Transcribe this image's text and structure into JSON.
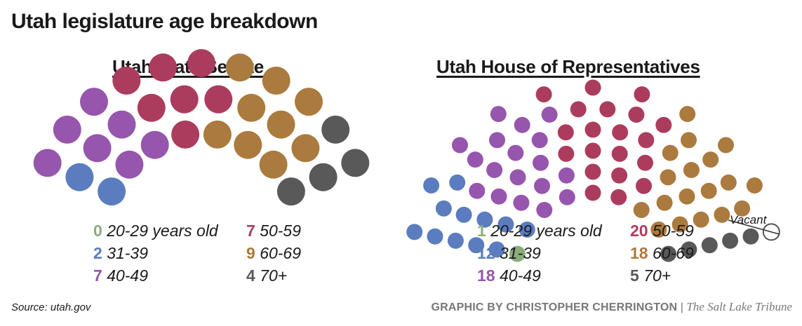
{
  "title": "Utah legislature age breakdown",
  "source": "Source: utah.gov",
  "credit": {
    "byline": "GRAPHIC BY CHRISTOPHER CHERRINGTON",
    "separator": "|",
    "publication": "The Salt Lake Tribune"
  },
  "colors": {
    "20-29": "#8aac7c",
    "31-39": "#5b7cbf",
    "40-49": "#9656ad",
    "50-59": "#ac3c5d",
    "60-69": "#ab7a3e",
    "70+": "#595959",
    "vacant": "#ffffff"
  },
  "chart_data": [
    {
      "type": "parliament",
      "title": "Utah State Senate",
      "categories": [
        "20-29 years old",
        "31-39",
        "40-49",
        "50-59",
        "60-69",
        "70+"
      ],
      "values": [
        0,
        2,
        7,
        7,
        9,
        4
      ],
      "legend": [
        {
          "count": "0",
          "label": "20-29 years old"
        },
        {
          "count": "7",
          "label": "50-59"
        },
        {
          "count": "2",
          "label": "31-39"
        },
        {
          "count": "9",
          "label": "60-69"
        },
        {
          "count": "7",
          "label": "40-49"
        },
        {
          "count": "4",
          "label": "70+"
        }
      ]
    },
    {
      "type": "parliament",
      "title": "Utah House of Representatives",
      "categories": [
        "20-29 years old",
        "31-39",
        "40-49",
        "50-59",
        "60-69",
        "70+"
      ],
      "values": [
        1,
        12,
        18,
        20,
        18,
        5
      ],
      "vacant": 1,
      "vacant_label": "Vacant",
      "legend": [
        {
          "count": "1",
          "label": "20-29 years old"
        },
        {
          "count": "20",
          "label": "50-59"
        },
        {
          "count": "12",
          "label": "31-39"
        },
        {
          "count": "18",
          "label": "60-69"
        },
        {
          "count": "18",
          "label": "40-49"
        },
        {
          "count": "5",
          "label": "70+"
        }
      ]
    }
  ]
}
